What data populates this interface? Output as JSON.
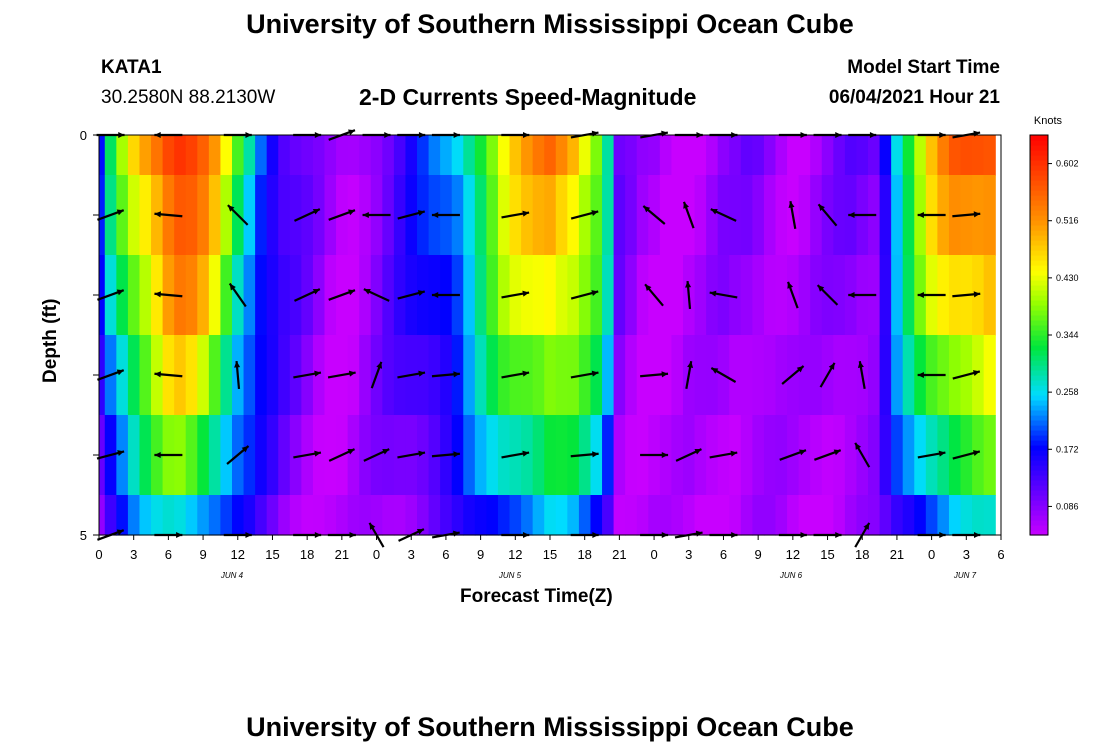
{
  "header": {
    "title": "University of Southern Mississippi Ocean Cube",
    "station": "KATA1",
    "coords": "30.2580N  88.2130W",
    "subtitle": "2-D Currents Speed-Magnitude",
    "model_label": "Model Start Time",
    "model_time": "06/04/2021 Hour 21"
  },
  "footer": {
    "title": "University of Southern Mississippi Ocean Cube"
  },
  "colors": {
    "min": "#c800ff",
    "max": "#ff0000"
  },
  "chart_data": {
    "type": "heatmap",
    "xlabel": "Forecast Time(Z)",
    "ylabel": "Depth (ft)",
    "ylim": [
      0,
      5
    ],
    "y_tick_labels": [
      "0",
      "",
      "",
      "",
      "",
      "5"
    ],
    "x_tick_labels": [
      "0",
      "3",
      "6",
      "9",
      "12",
      "15",
      "18",
      "21",
      "0",
      "3",
      "6",
      "9",
      "12",
      "15",
      "18",
      "21",
      "0",
      "3",
      "6",
      "9",
      "12",
      "15",
      "18",
      "21",
      "0",
      "3",
      "6"
    ],
    "day_labels": [
      "JUN 4",
      "JUN 5",
      "JUN 6",
      "JUN 7"
    ],
    "day_label_hour_offsets": [
      6,
      78,
      150,
      198
    ],
    "time_hours_start": 0,
    "time_hours_end": 78,
    "colorbar": {
      "unit": "Knots",
      "min": 0.043,
      "max": 0.645,
      "ticks": [
        0.086,
        0.172,
        0.258,
        0.344,
        0.43,
        0.516,
        0.602
      ],
      "tick_labels": [
        "0.086",
        "0.172",
        "0.258",
        "0.344",
        "0.430",
        "0.516",
        "0.602"
      ]
    },
    "speed_profile_hours": [
      0,
      1,
      2,
      3,
      4,
      5,
      6,
      7,
      8,
      9,
      10,
      11,
      12,
      13,
      14,
      15,
      16,
      17,
      18,
      19,
      20,
      21,
      22,
      23,
      24,
      25,
      26,
      27,
      28,
      29,
      30,
      31,
      32,
      33,
      34,
      35,
      36,
      37,
      38,
      39,
      40,
      41,
      42,
      43,
      44,
      45,
      46,
      47,
      48,
      49,
      50,
      51,
      52,
      53,
      54,
      55,
      56,
      57,
      58,
      59,
      60,
      61,
      62,
      63,
      64,
      65,
      66,
      67,
      68,
      69,
      70,
      71,
      72,
      73,
      74,
      75,
      76,
      77
    ],
    "speed_surface": [
      0.18,
      0.3,
      0.38,
      0.45,
      0.5,
      0.55,
      0.6,
      0.62,
      0.6,
      0.56,
      0.5,
      0.42,
      0.34,
      0.28,
      0.22,
      0.18,
      0.14,
      0.12,
      0.1,
      0.08,
      0.06,
      0.05,
      0.06,
      0.08,
      0.1,
      0.12,
      0.14,
      0.16,
      0.18,
      0.2,
      0.22,
      0.25,
      0.3,
      0.35,
      0.4,
      0.45,
      0.48,
      0.5,
      0.52,
      0.54,
      0.52,
      0.5,
      0.45,
      0.4,
      0.3,
      0.1,
      0.08,
      0.06,
      0.06,
      0.05,
      0.05,
      0.06,
      0.06,
      0.07,
      0.08,
      0.08,
      0.09,
      0.09,
      0.08,
      0.07,
      0.06,
      0.06,
      0.07,
      0.08,
      0.09,
      0.1,
      0.1,
      0.1,
      0.18,
      0.28,
      0.35,
      0.42,
      0.48,
      0.52,
      0.55,
      0.56,
      0.57,
      0.58
    ],
    "depth_factor": [
      1.0,
      0.92,
      0.84,
      0.72,
      0.58,
      0.4
    ],
    "rows_depth_ft": [
      0,
      1,
      2,
      3,
      4,
      5
    ],
    "arrow_hours": [
      1,
      6,
      12,
      18,
      21,
      24,
      27,
      30,
      36,
      42,
      48,
      51,
      54,
      60,
      63,
      66,
      72,
      75
    ],
    "arrow_rows": [
      {
        "depth": 0,
        "angles_deg": [
          0,
          180,
          0,
          0,
          20,
          0,
          0,
          0,
          0,
          10,
          10,
          0,
          0,
          0,
          0,
          0,
          0,
          10
        ]
      },
      {
        "depth": 1,
        "angles_deg": [
          20,
          175,
          135,
          25,
          20,
          180,
          15,
          180,
          10,
          15,
          140,
          110,
          155,
          100,
          130,
          180,
          180,
          5
        ]
      },
      {
        "depth": 2,
        "angles_deg": [
          20,
          175,
          125,
          25,
          20,
          155,
          15,
          180,
          10,
          15,
          130,
          95,
          170,
          110,
          135,
          180,
          180,
          5
        ]
      },
      {
        "depth": 3,
        "angles_deg": [
          20,
          175,
          95,
          10,
          10,
          70,
          10,
          5,
          10,
          10,
          5,
          80,
          150,
          40,
          60,
          100,
          180,
          15
        ]
      },
      {
        "depth": 4,
        "angles_deg": [
          15,
          180,
          40,
          10,
          25,
          25,
          10,
          5,
          10,
          5,
          0,
          25,
          10,
          20,
          20,
          120,
          10,
          15
        ]
      },
      {
        "depth": 5,
        "angles_deg": [
          20,
          0,
          0,
          0,
          0,
          120,
          25,
          10,
          0,
          0,
          0,
          10,
          0,
          0,
          0,
          60,
          0,
          0
        ]
      }
    ]
  }
}
